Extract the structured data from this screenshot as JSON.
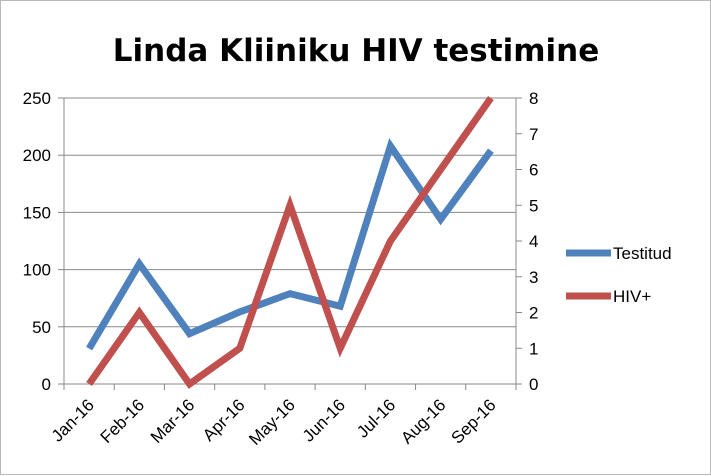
{
  "chart_data": {
    "type": "line",
    "title": "Linda Kliiniku HIV testimine",
    "categories": [
      "Jan-16",
      "Feb-16",
      "Mar-16",
      "Apr-16",
      "May-16",
      "Jun-16",
      "Jul-16",
      "Aug-16",
      "Sep-16"
    ],
    "series": [
      {
        "name": "Testitud",
        "axis": "left",
        "color": "#4f81bd",
        "values": [
          31,
          105,
          44,
          63,
          79,
          68,
          208,
          144,
          204
        ]
      },
      {
        "name": "HIV+",
        "axis": "right",
        "color": "#c0504d",
        "values": [
          0,
          2,
          0,
          1,
          5,
          1,
          4,
          6,
          8
        ]
      }
    ],
    "y_left": {
      "ylim": [
        0,
        250
      ],
      "ticks": [
        "0",
        "50",
        "100",
        "150",
        "200",
        "250"
      ]
    },
    "y_right": {
      "ylim": [
        0,
        8
      ],
      "ticks": [
        "0",
        "1",
        "2",
        "3",
        "4",
        "5",
        "6",
        "7",
        "8"
      ]
    },
    "grid": "horizontal",
    "legend": "right"
  }
}
